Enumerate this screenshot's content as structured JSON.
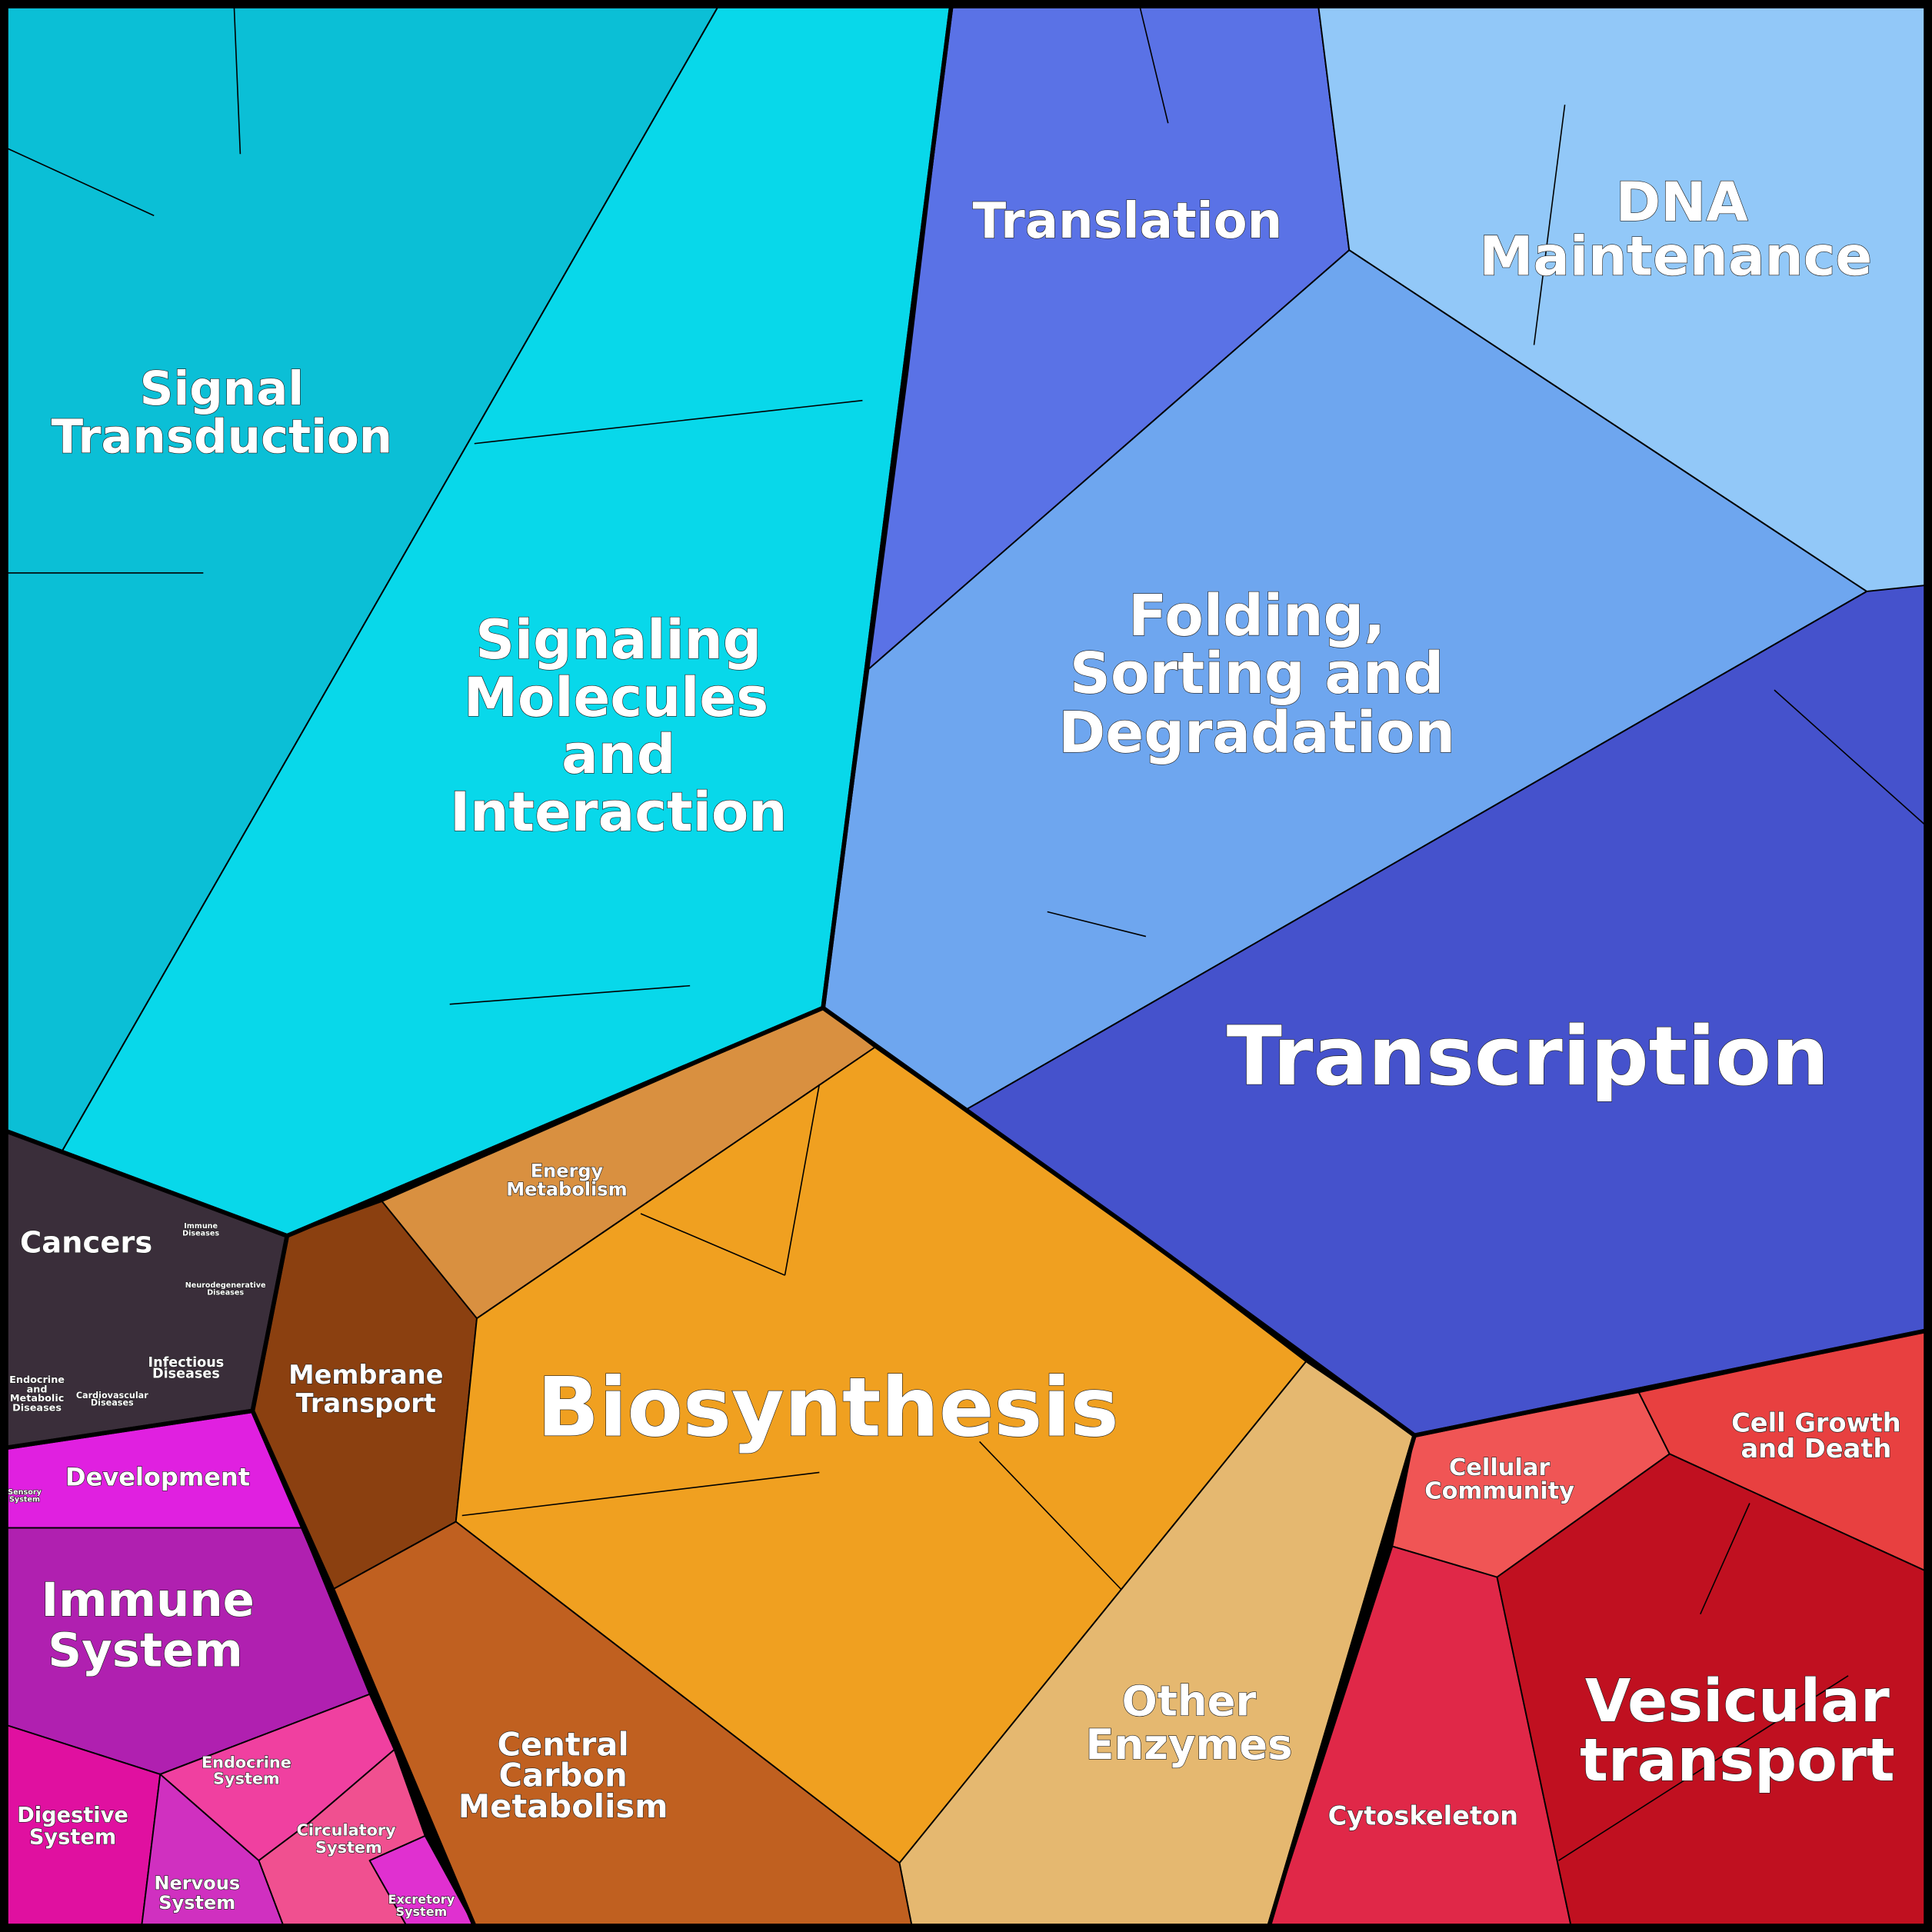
{
  "labels": [
    {
      "lines": [
        "Signal",
        "Transduction"
      ]
    },
    {
      "lines": [
        "Signaling",
        "Molecules",
        "and",
        "Interaction"
      ]
    },
    {
      "lines": [
        "Translation"
      ]
    },
    {
      "lines": [
        "DNA",
        "Maintenance"
      ]
    },
    {
      "lines": [
        "Folding,",
        "Sorting and",
        "Degradation"
      ]
    },
    {
      "lines": [
        "Transcription"
      ]
    },
    {
      "lines": [
        "Energy",
        "Metabolism"
      ]
    },
    {
      "lines": [
        "Membrane",
        "Transport"
      ]
    },
    {
      "lines": [
        "Biosynthesis"
      ]
    },
    {
      "lines": [
        "Central",
        "Carbon",
        "Metabolism"
      ]
    },
    {
      "lines": [
        "Other",
        "Enzymes"
      ]
    },
    {
      "lines": [
        "Cellular",
        "Community"
      ]
    },
    {
      "lines": [
        "Cell Growth",
        "and Death"
      ]
    },
    {
      "lines": [
        "Cytoskeleton"
      ]
    },
    {
      "lines": [
        "Vesicular",
        "transport"
      ]
    },
    {
      "lines": [
        "Cancers"
      ]
    },
    {
      "lines": [
        "Immune",
        "Diseases"
      ]
    },
    {
      "lines": [
        "Neurodegenerative",
        "Diseases"
      ]
    },
    {
      "lines": [
        "Infectious",
        "Diseases"
      ]
    },
    {
      "lines": [
        "Cardiovascular",
        "Diseases"
      ]
    },
    {
      "lines": [
        "Endocrine",
        "and",
        "Metabolic",
        "Diseases"
      ]
    },
    {
      "lines": [
        "Development"
      ]
    },
    {
      "lines": [
        "Sensory",
        "System"
      ]
    },
    {
      "lines": [
        "Immune",
        "System"
      ]
    },
    {
      "lines": [
        "Digestive",
        "System"
      ]
    },
    {
      "lines": [
        "Endocrine",
        "System"
      ]
    },
    {
      "lines": [
        "Circulatory",
        "System"
      ]
    },
    {
      "lines": [
        "Nervous",
        "System"
      ]
    },
    {
      "lines": [
        "Excretory",
        "System"
      ]
    }
  ]
}
